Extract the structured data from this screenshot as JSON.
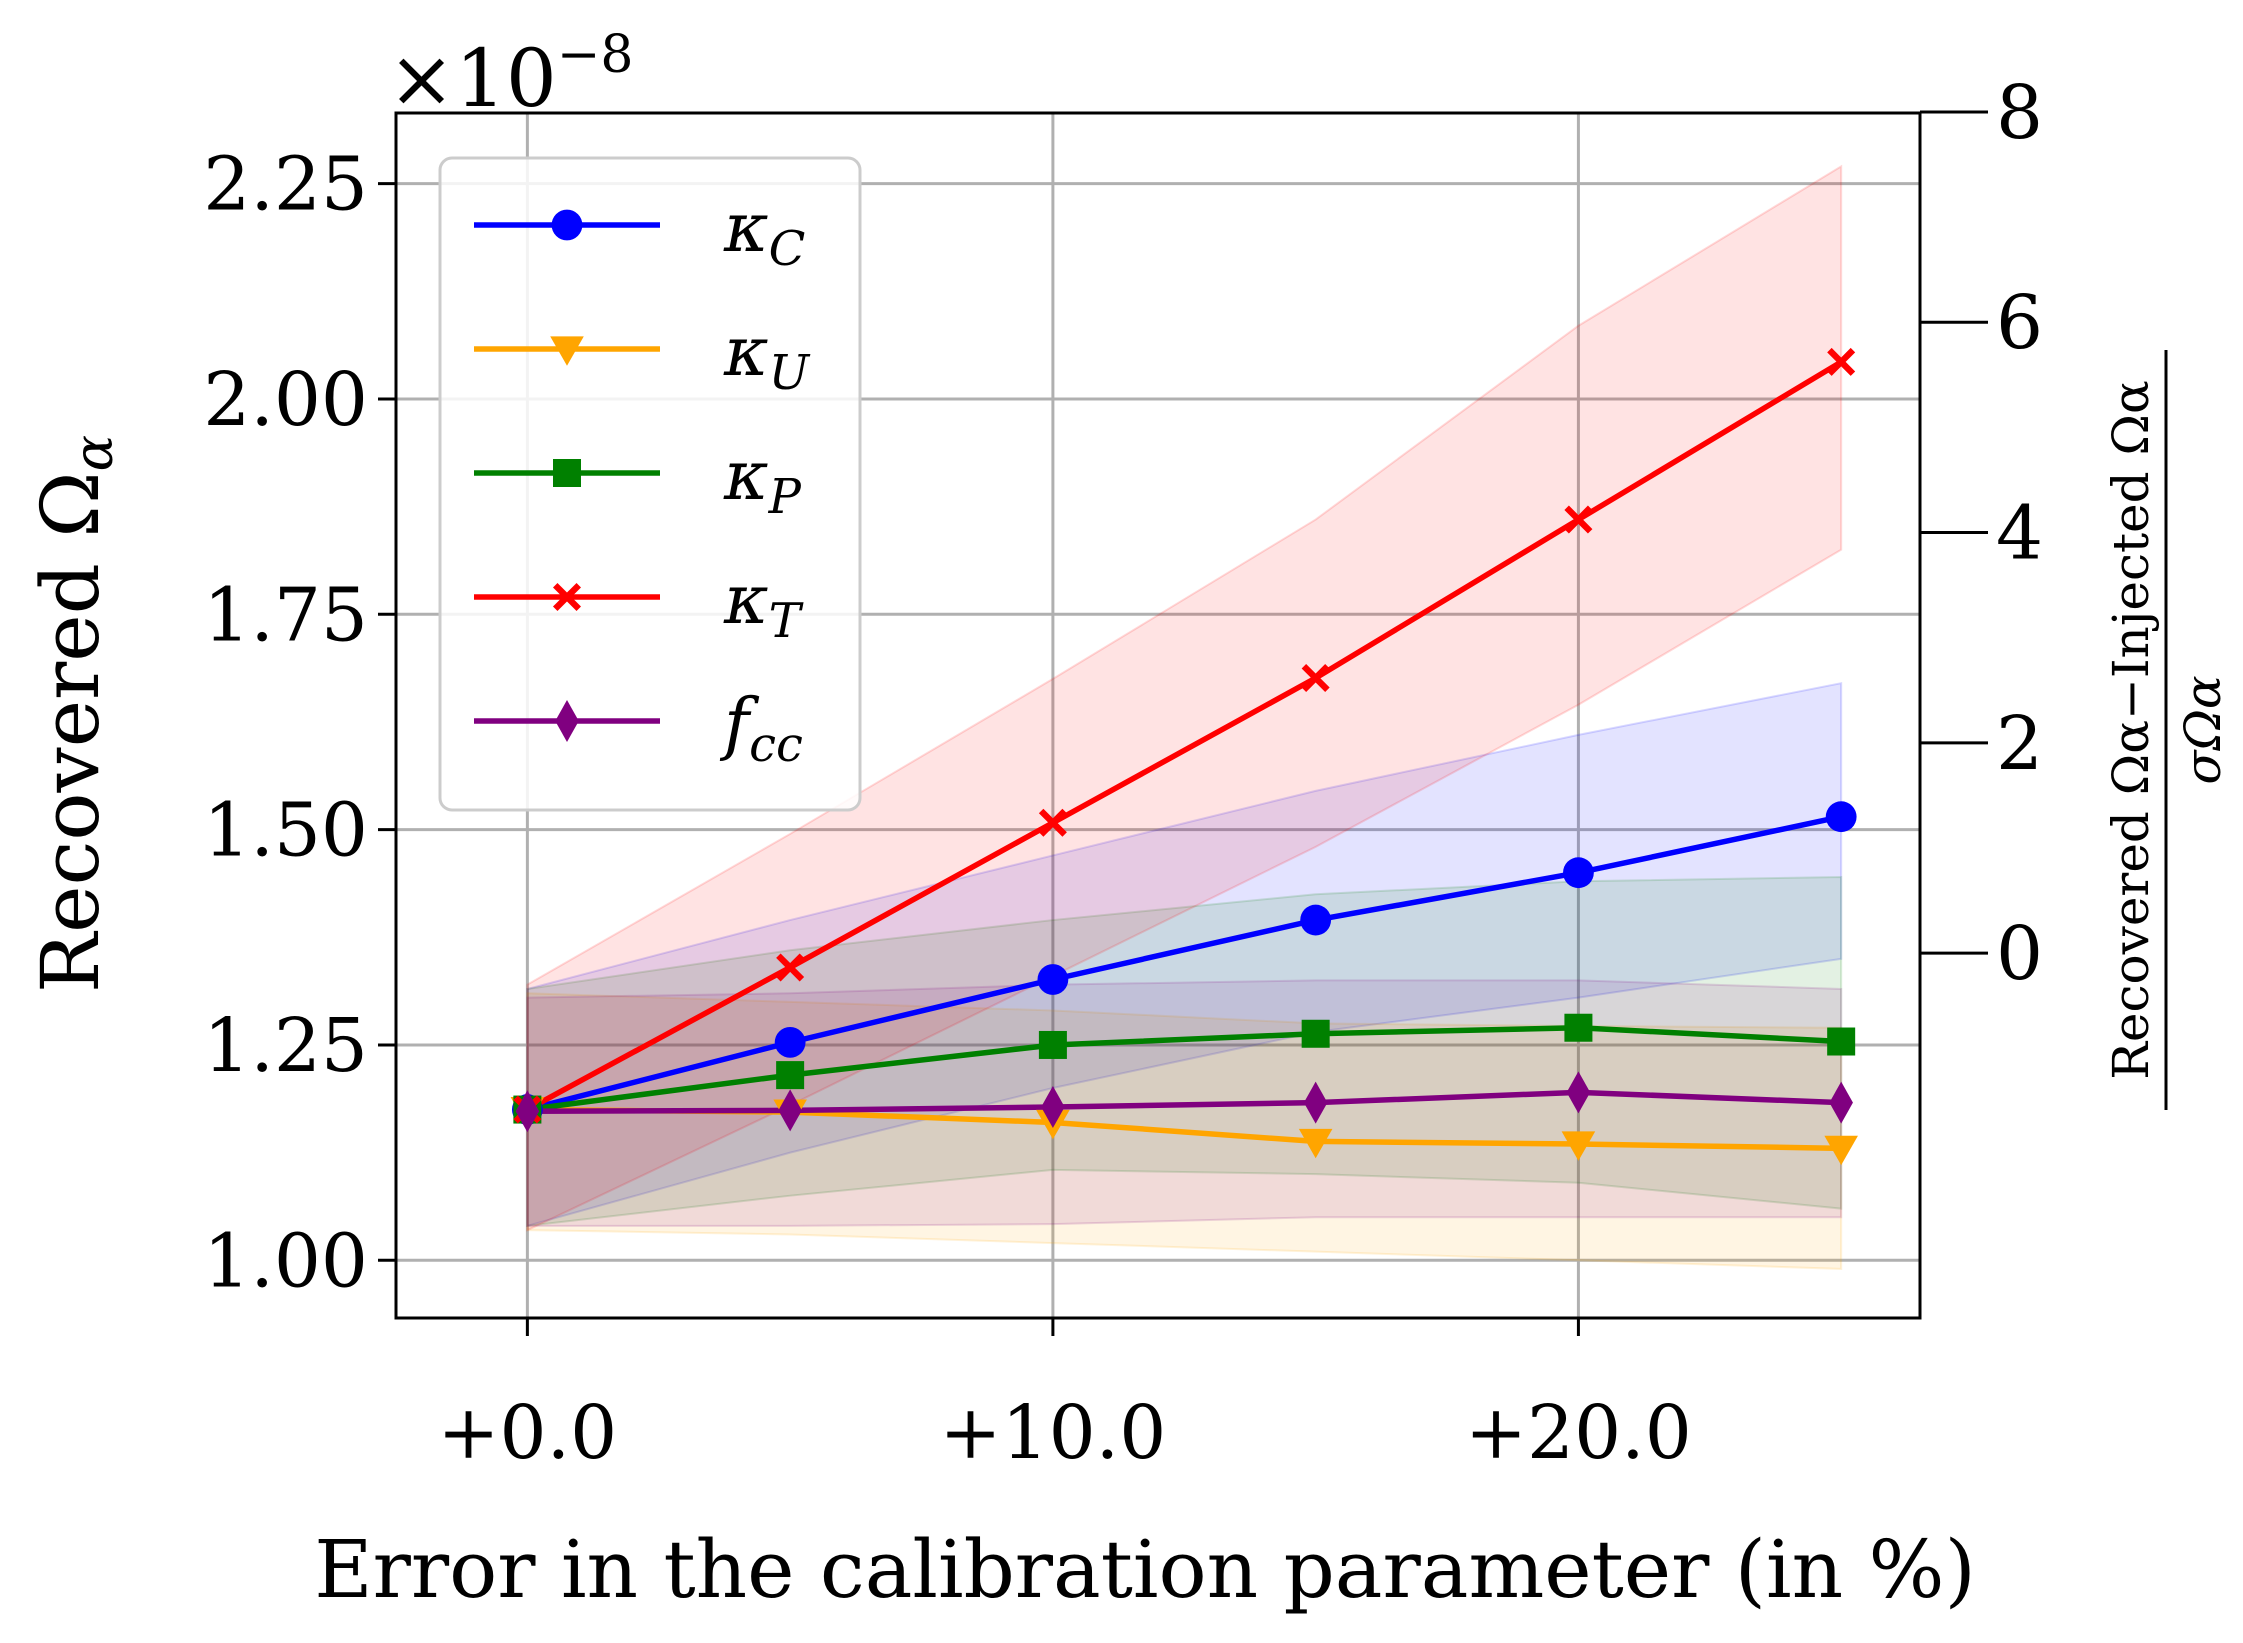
{
  "chart_data": {
    "type": "line",
    "xlabel": "Error in the calibration parameter (in %)",
    "ylabel": "Recovered Ω",
    "ylabel_subscript": "α",
    "y_multiplier": "×10",
    "y_multiplier_exponent": "−8",
    "right_ylabel_numerator": "Recovered Ωα−Injected Ωα",
    "right_ylabel_denominator": "σΩα",
    "xlim": [
      -2.5,
      26.5
    ],
    "ylim": [
      0.933,
      2.332
    ],
    "right_ylim": [
      -3.47,
      7.99
    ],
    "x_ticks": [
      0,
      10,
      20
    ],
    "x_tick_labels": [
      "+0.0",
      "+10.0",
      "+20.0"
    ],
    "y_ticks": [
      1.0,
      1.25,
      1.5,
      1.75,
      2.0,
      2.25
    ],
    "y_tick_labels": [
      "1.00",
      "1.25",
      "1.50",
      "1.75",
      "2.00",
      "2.25"
    ],
    "right_ticks": [
      0,
      2,
      4,
      6,
      8
    ],
    "right_tick_labels": [
      "0",
      "2",
      "4",
      "6",
      "8"
    ],
    "grid": true,
    "legend_position": "upper-left",
    "x": [
      0,
      5,
      10,
      15,
      20,
      25
    ],
    "series": [
      {
        "name": "κC",
        "base": "κ",
        "sub": "C",
        "color": "#0000ff",
        "marker": "circle",
        "values": [
          1.175,
          1.253,
          1.326,
          1.395,
          1.45,
          1.515
        ],
        "upper": [
          1.315,
          1.395,
          1.47,
          1.545,
          1.61,
          1.67
        ],
        "lower": [
          1.04,
          1.125,
          1.2,
          1.265,
          1.305,
          1.35
        ]
      },
      {
        "name": "κU",
        "base": "κ",
        "sub": "U",
        "color": "#ffa500",
        "marker": "triangle-down",
        "values": [
          1.175,
          1.172,
          1.16,
          1.138,
          1.135,
          1.13
        ],
        "upper": [
          1.31,
          1.3,
          1.29,
          1.275,
          1.272,
          1.27
        ],
        "lower": [
          1.035,
          1.03,
          1.02,
          1.01,
          1.0,
          0.99
        ]
      },
      {
        "name": "κP",
        "base": "κ",
        "sub": "P",
        "color": "#008000",
        "marker": "square",
        "values": [
          1.175,
          1.215,
          1.25,
          1.263,
          1.27,
          1.254
        ],
        "upper": [
          1.315,
          1.36,
          1.395,
          1.425,
          1.44,
          1.445
        ],
        "lower": [
          1.04,
          1.075,
          1.105,
          1.1,
          1.09,
          1.06
        ]
      },
      {
        "name": "κT",
        "base": "κ",
        "sub": "T",
        "color": "#ff0000",
        "marker": "x",
        "values": [
          1.175,
          1.34,
          1.508,
          1.676,
          1.86,
          2.043
        ],
        "upper": [
          1.32,
          1.495,
          1.675,
          1.86,
          2.085,
          2.27
        ],
        "lower": [
          1.035,
          1.18,
          1.33,
          1.48,
          1.645,
          1.825
        ]
      },
      {
        "name": "fcc",
        "base": "f",
        "sub": "cc",
        "color": "#800080",
        "marker": "thin-diamond",
        "values": [
          1.173,
          1.174,
          1.178,
          1.183,
          1.195,
          1.183
        ],
        "upper": [
          1.305,
          1.31,
          1.32,
          1.325,
          1.325,
          1.315
        ],
        "lower": [
          1.04,
          1.04,
          1.042,
          1.05,
          1.05,
          1.05
        ]
      }
    ]
  }
}
